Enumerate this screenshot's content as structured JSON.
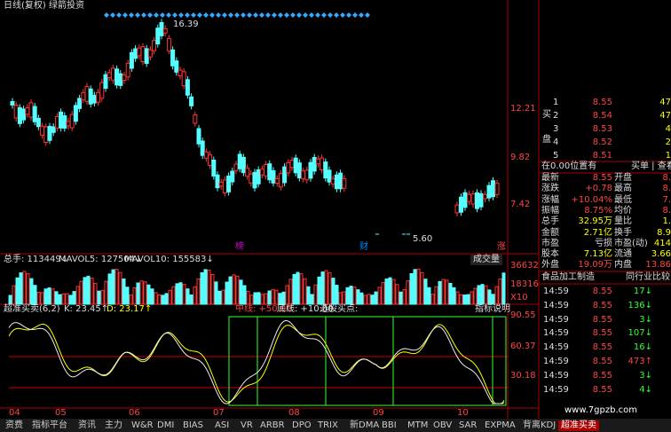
{
  "header": {
    "title": "日线(复权) 绿箭投资"
  },
  "price_chart": {
    "high_label": "16.39",
    "low_label": "5.60",
    "axis": [
      "12.21",
      "9.82",
      "7.42"
    ],
    "markers": [
      "榜",
      "财",
      "涨"
    ]
  },
  "volume": {
    "total": "总手: 113449↓",
    "mavol5": "MAVOL5: 127504↓",
    "mavol10": "MAVOL10: 155583↓",
    "button": "成交量",
    "axis": [
      "36632",
      "18316",
      "X10"
    ]
  },
  "indicator": {
    "name": "超准买卖(6,2)",
    "k": "K: 23.45↑",
    "d": "D: 23.17↑",
    "mid": "中线: +50.00",
    "low": "底线: +10.00",
    "pick": "选股买点:",
    "help": "指标说明",
    "axis": [
      "90.55",
      "60.37",
      "30.18"
    ]
  },
  "dates": [
    "04",
    "05",
    "06",
    "07",
    "08",
    "09",
    "10"
  ],
  "tabs": [
    "资费",
    "指标平台",
    "资讯",
    "主力",
    "W&R",
    "DMI",
    "BIAS",
    "ASI",
    "VR",
    "ARBR",
    "DPO",
    "TRIX",
    "新DMA",
    "BBI",
    "MTM",
    "OBV",
    "SAR",
    "EXPMA",
    "背离KDJ",
    "超准买卖"
  ],
  "order_book": {
    "side": [
      "买",
      "盘"
    ],
    "rows": [
      [
        "1",
        "8.55",
        "47"
      ],
      [
        "2",
        "8.54",
        "47"
      ],
      [
        "3",
        "8.53",
        "4"
      ],
      [
        "4",
        "8.52",
        "2"
      ],
      [
        "5",
        "8.51",
        "1"
      ]
    ]
  },
  "queue": {
    "left": "在0.00位置有",
    "right": "买单 | 查看详"
  },
  "stats": [
    [
      "最新",
      "8.55",
      "开盘",
      "8."
    ],
    [
      "涨跌",
      "+0.78",
      "最高",
      "8."
    ],
    [
      "涨幅",
      "+10.04%",
      "最低",
      "7."
    ],
    [
      "振幅",
      "8.75%",
      "均价",
      "8."
    ],
    [
      "总手",
      "32.95万",
      "量比",
      "1."
    ],
    [
      "金额",
      "2.71亿",
      "换手",
      "8.9"
    ],
    [
      "市盈",
      "亏损",
      "市盈(动)",
      "414"
    ],
    [
      "股本",
      "7.13亿",
      "流通",
      "3.66"
    ],
    [
      "外盘",
      "19.09万",
      "内盘",
      "13.86"
    ]
  ],
  "industry": {
    "name": "食品加工制造",
    "compare": "同行业比较"
  },
  "ticks": [
    [
      "14:59",
      "8.55",
      "17↓"
    ],
    [
      "14:59",
      "8.55",
      "136↓"
    ],
    [
      "14:59",
      "8.55",
      "3↓"
    ],
    [
      "14:59",
      "8.55",
      "107↓"
    ],
    [
      "14:59",
      "8.55",
      "16↓"
    ],
    [
      "14:59",
      "8.55",
      "473↑"
    ],
    [
      "14:59",
      "8.55",
      "3↓"
    ],
    [
      "14:59",
      "8.55",
      "4↓"
    ]
  ],
  "watermark": "www.7gpzb.com"
}
